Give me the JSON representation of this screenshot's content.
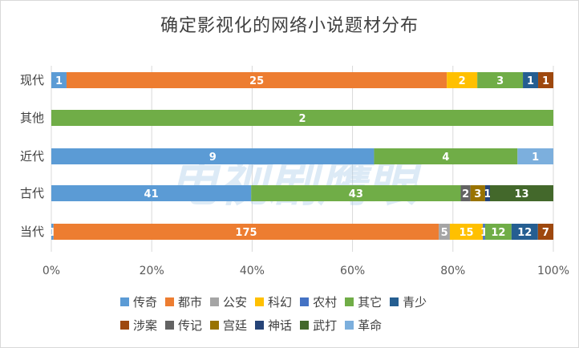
{
  "chart_data": {
    "type": "bar",
    "orientation": "horizontal",
    "stacked": "percent",
    "title": "确定影视化的网络小说题材分布",
    "categories": [
      "当代",
      "古代",
      "近代",
      "其他",
      "现代"
    ],
    "x_ticks": [
      "0%",
      "20%",
      "40%",
      "60%",
      "80%",
      "100%"
    ],
    "xlim": [
      0,
      100
    ],
    "legend_position": "bottom",
    "grid": true,
    "series": [
      {
        "name": "传奇",
        "color": "#5b9bd5",
        "values": [
          1,
          41,
          9,
          0,
          1
        ]
      },
      {
        "name": "都市",
        "color": "#ed7d31",
        "values": [
          175,
          0,
          0,
          0,
          25
        ]
      },
      {
        "name": "公安",
        "color": "#a5a5a5",
        "values": [
          5,
          0,
          0,
          0,
          0
        ]
      },
      {
        "name": "科幻",
        "color": "#ffc000",
        "values": [
          15,
          0,
          0,
          0,
          2
        ]
      },
      {
        "name": "农村",
        "color": "#4472c4",
        "values": [
          1,
          0,
          0,
          0,
          0
        ]
      },
      {
        "name": "其它",
        "color": "#70ad47",
        "values": [
          12,
          43,
          4,
          2,
          3
        ]
      },
      {
        "name": "青少",
        "color": "#255e91",
        "values": [
          12,
          0,
          0,
          0,
          1
        ]
      },
      {
        "name": "涉案",
        "color": "#9e480e",
        "values": [
          7,
          0,
          0,
          0,
          1
        ]
      },
      {
        "name": "传记",
        "color": "#636363",
        "values": [
          0,
          2,
          0,
          0,
          0
        ]
      },
      {
        "name": "宫廷",
        "color": "#997300",
        "values": [
          0,
          3,
          0,
          0,
          0
        ]
      },
      {
        "name": "神话",
        "color": "#264478",
        "values": [
          0,
          1,
          0,
          0,
          0
        ]
      },
      {
        "name": "武打",
        "color": "#43682b",
        "values": [
          0,
          13,
          0,
          0,
          0
        ]
      },
      {
        "name": "革命",
        "color": "#7cafdd",
        "values": [
          0,
          0,
          1,
          0,
          0
        ]
      }
    ],
    "watermark_text": "电视剧鹰眼"
  }
}
